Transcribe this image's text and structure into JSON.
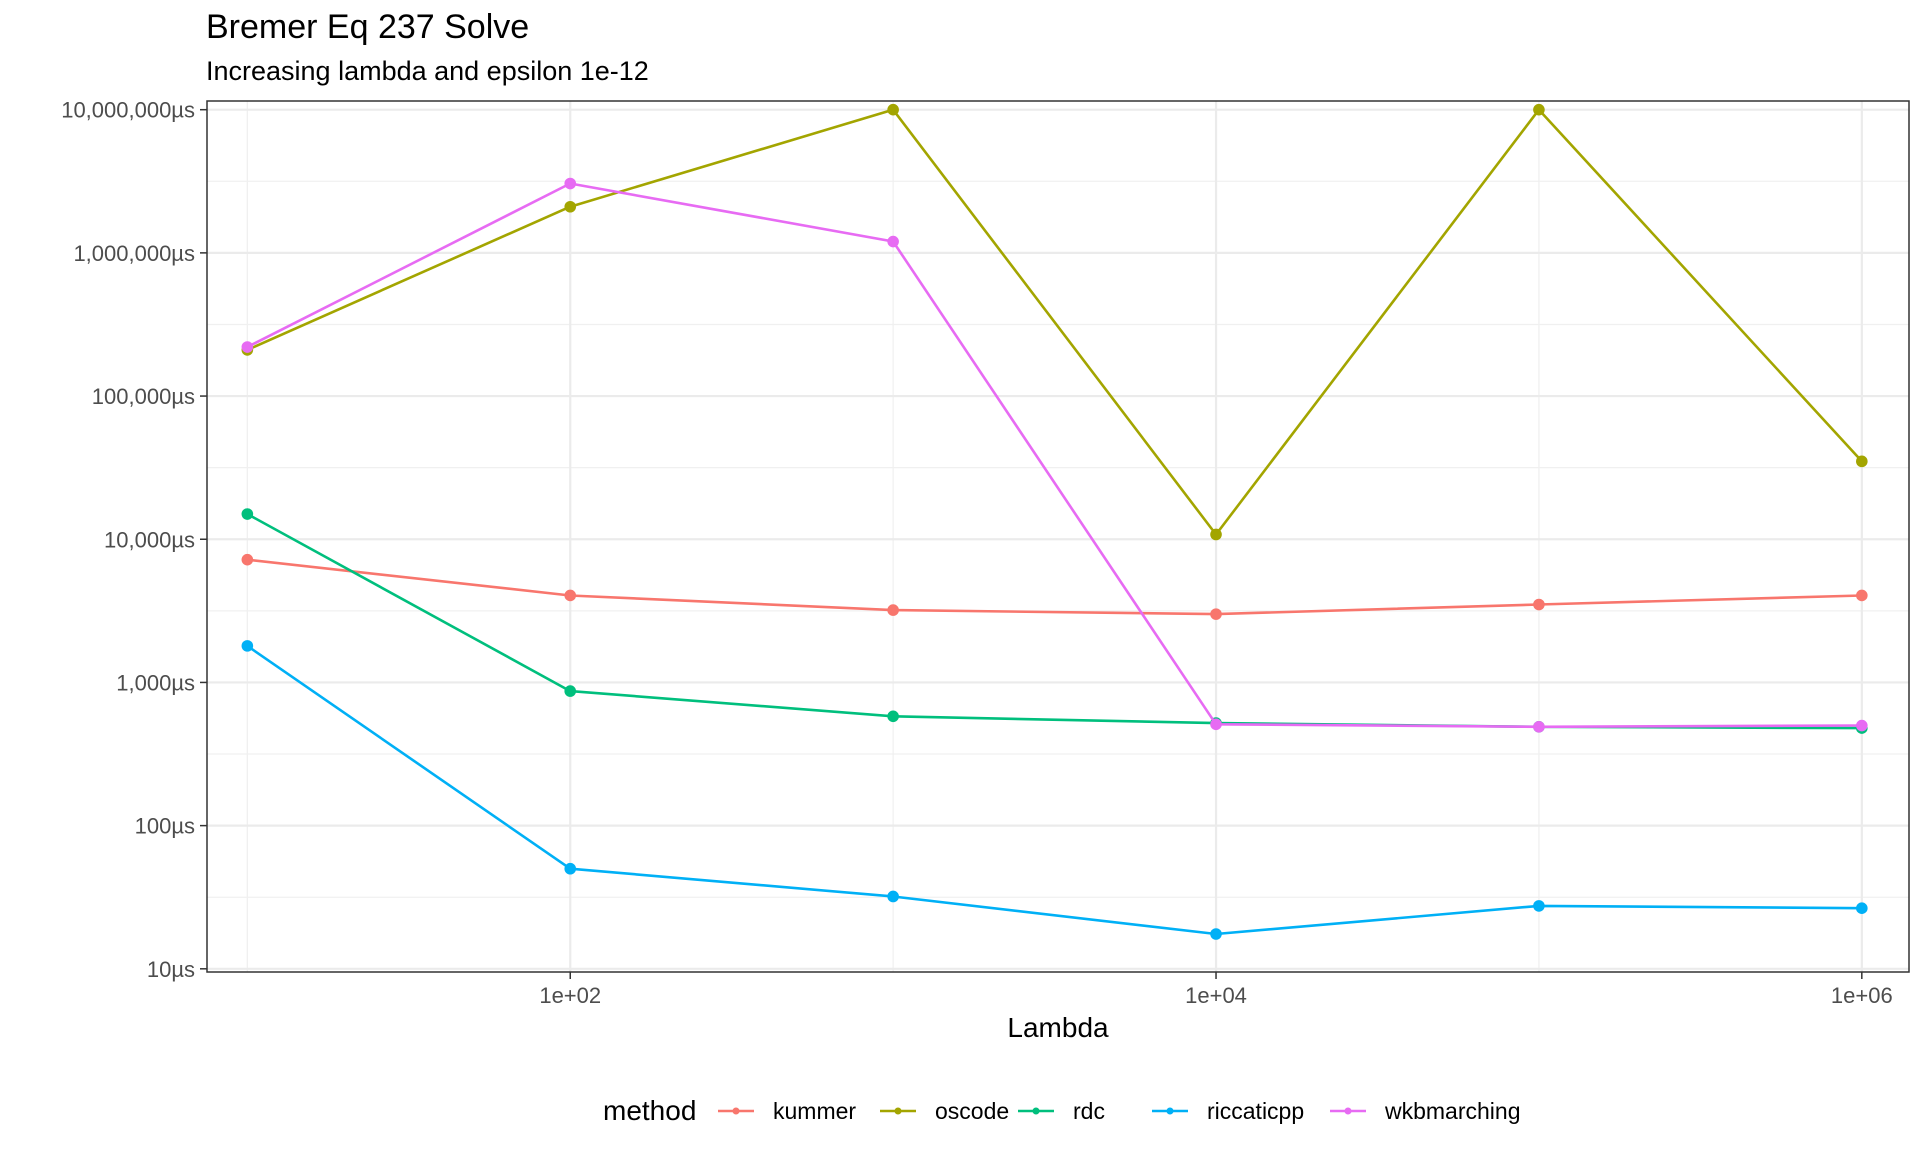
{
  "chart_data": {
    "type": "line",
    "title": "Bremer Eq 237 Solve",
    "subtitle": "Increasing lambda and epsilon 1e-12",
    "xlabel": "Lambda",
    "ylabel": "",
    "x_scale": "log10",
    "y_scale": "log10",
    "x": [
      10,
      100,
      1000,
      10000,
      100000,
      1000000
    ],
    "x_ticks": [
      {
        "value": 100,
        "label": "1e+02"
      },
      {
        "value": 10000,
        "label": "1e+04"
      },
      {
        "value": 1000000,
        "label": "1e+06"
      }
    ],
    "x_minor_ticks": [
      10,
      1000,
      100000
    ],
    "y_ticks": [
      {
        "value": 10,
        "label": "10µs"
      },
      {
        "value": 100,
        "label": "100µs"
      },
      {
        "value": 1000,
        "label": "1,000µs"
      },
      {
        "value": 10000,
        "label": "10,000µs"
      },
      {
        "value": 100000,
        "label": "100,000µs"
      },
      {
        "value": 1000000,
        "label": "1,000,000µs"
      },
      {
        "value": 10000000,
        "label": "10,000,000µs"
      }
    ],
    "xlim": [
      7.5,
      1400000
    ],
    "ylim": [
      9.5,
      11500000
    ],
    "grid": true,
    "legend": {
      "title": "method",
      "position": "bottom"
    },
    "series": [
      {
        "name": "kummer",
        "color": "#F8766D",
        "values": [
          7200,
          4050,
          3200,
          3000,
          3500,
          4050
        ]
      },
      {
        "name": "oscode",
        "color": "#A3A500",
        "values": [
          210000,
          2100000,
          10000000,
          10800,
          10000000,
          35000
        ]
      },
      {
        "name": "rdc",
        "color": "#00BF7D",
        "values": [
          15000,
          870,
          580,
          520,
          490,
          480
        ]
      },
      {
        "name": "riccaticpp",
        "color": "#00B0F6",
        "values": [
          1800,
          50,
          32,
          17.5,
          27.5,
          26.5
        ]
      },
      {
        "name": "wkbmarching",
        "color": "#E76BF3",
        "values": [
          220000,
          3050000,
          1200000,
          510,
          490,
          500
        ]
      }
    ]
  }
}
